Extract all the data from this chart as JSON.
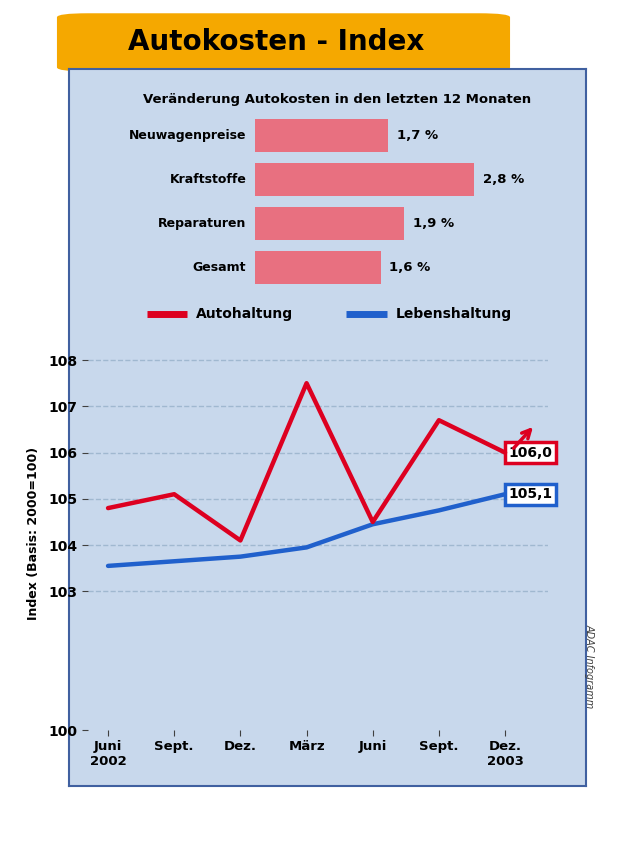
{
  "title": "Autokosten - Index",
  "title_bg": "#F5A800",
  "infobox_title": "Veränderung Autokosten in den letzten 12 Monaten",
  "bar_labels": [
    "Neuwagenpreise",
    "Kraftstoffe",
    "Reparaturen",
    "Gesamt"
  ],
  "bar_values": [
    1.7,
    2.8,
    1.9,
    1.6
  ],
  "bar_color": "#E87080",
  "bar_dark_color": "#C0203A",
  "bar_max": 3.2,
  "ylabel": "Index (Basis: 2000=100)",
  "ylim": [
    100,
    108.5
  ],
  "yticks": [
    100,
    103,
    104,
    105,
    106,
    107,
    108
  ],
  "x_labels": [
    "Juni\n2002",
    "Sept.",
    "Dez.",
    "März",
    "Juni",
    "Sept.",
    "Dez.\n2003"
  ],
  "x_positions": [
    0,
    1,
    2,
    3,
    4,
    5,
    6
  ],
  "red_line": [
    104.8,
    105.1,
    104.1,
    107.5,
    104.5,
    106.7,
    106.0
  ],
  "blue_line": [
    103.55,
    103.65,
    103.75,
    103.95,
    104.45,
    104.75,
    105.1
  ],
  "red_color": "#DD0020",
  "blue_color": "#2060CC",
  "red_label_value": "106,0",
  "blue_label_value": "105,1",
  "legend_auto": "Autohaltung",
  "legend_leben": "Lebenshaltung",
  "bg_color": "#C8D8EC",
  "grid_color": "#A0B8D0",
  "outer_bg": "#FFFFFF",
  "infobox_bg": "#DCE8F4",
  "infobox_border": "#4060A0"
}
